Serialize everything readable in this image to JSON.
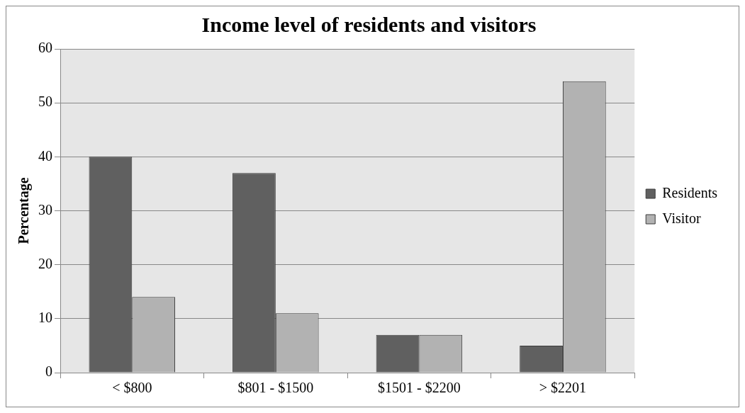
{
  "chart_data": {
    "type": "bar",
    "title": "Income level of residents and visitors",
    "ylabel": "Percentage",
    "categories": [
      "< $800",
      "$801 - $1500",
      "$1501 - $2200",
      "> $2201"
    ],
    "series": [
      {
        "name": "Residents",
        "color": "#606060",
        "values": [
          40,
          37,
          7,
          5
        ]
      },
      {
        "name": "Visitor",
        "color": "#b2b2b2",
        "values": [
          14,
          11,
          7,
          54
        ]
      }
    ],
    "ylim": [
      0,
      60
    ],
    "yticks": [
      0,
      10,
      20,
      30,
      40,
      50,
      60
    ],
    "grid": "y",
    "legend": "right"
  }
}
